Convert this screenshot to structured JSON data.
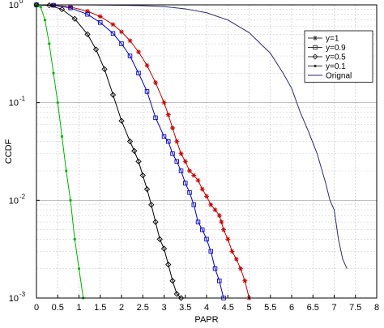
{
  "chart_data": {
    "type": "line",
    "title": "",
    "xlabel": "PAPR",
    "ylabel": "CCDF",
    "xlim": [
      0,
      8
    ],
    "ylim": [
      0.001,
      1
    ],
    "yscale": "log",
    "grid": true,
    "legend_position": "top-right",
    "x_ticks": [
      "0",
      "0.5",
      "1",
      "1.5",
      "2",
      "2.5",
      "3",
      "3.5",
      "4",
      "4.5",
      "5",
      "5.5",
      "6",
      "6.5",
      "7",
      "7.5",
      "8"
    ],
    "y_ticks": [
      {
        "value": 1,
        "base": "10",
        "exp": "0"
      },
      {
        "value": 0.1,
        "base": "10",
        "exp": "-1"
      },
      {
        "value": 0.01,
        "base": "10",
        "exp": "-2"
      },
      {
        "value": 0.001,
        "base": "10",
        "exp": "-3"
      }
    ],
    "series": [
      {
        "name": "y=1",
        "color": "#c00000",
        "marker": "star",
        "points": [
          [
            0,
            1
          ],
          [
            0.4,
            0.99
          ],
          [
            0.8,
            0.95
          ],
          [
            1.2,
            0.86
          ],
          [
            1.5,
            0.76
          ],
          [
            1.8,
            0.63
          ],
          [
            2.0,
            0.53
          ],
          [
            2.2,
            0.43
          ],
          [
            2.4,
            0.33
          ],
          [
            2.6,
            0.24
          ],
          [
            2.8,
            0.16
          ],
          [
            3.0,
            0.1
          ],
          [
            3.1,
            0.075
          ],
          [
            3.2,
            0.055
          ],
          [
            3.3,
            0.04
          ],
          [
            3.4,
            0.03
          ],
          [
            3.5,
            0.025
          ],
          [
            3.6,
            0.02
          ],
          [
            3.7,
            0.018
          ],
          [
            3.8,
            0.016
          ],
          [
            3.9,
            0.013
          ],
          [
            4.0,
            0.011
          ],
          [
            4.1,
            0.009
          ],
          [
            4.2,
            0.008
          ],
          [
            4.3,
            0.007
          ],
          [
            4.35,
            0.006
          ],
          [
            4.4,
            0.005
          ],
          [
            4.5,
            0.004
          ],
          [
            4.6,
            0.003
          ],
          [
            4.7,
            0.0025
          ],
          [
            4.8,
            0.002
          ],
          [
            4.9,
            0.0015
          ],
          [
            5.0,
            0.001
          ]
        ]
      },
      {
        "name": "y=0.9",
        "color": "#0000c0",
        "marker": "square",
        "points": [
          [
            0,
            1
          ],
          [
            0.4,
            0.99
          ],
          [
            0.8,
            0.93
          ],
          [
            1.2,
            0.8
          ],
          [
            1.5,
            0.66
          ],
          [
            1.8,
            0.51
          ],
          [
            2.0,
            0.4
          ],
          [
            2.2,
            0.3
          ],
          [
            2.4,
            0.2
          ],
          [
            2.6,
            0.13
          ],
          [
            2.8,
            0.07
          ],
          [
            3.0,
            0.045
          ],
          [
            3.1,
            0.04
          ],
          [
            3.2,
            0.03
          ],
          [
            3.3,
            0.025
          ],
          [
            3.4,
            0.02
          ],
          [
            3.5,
            0.015
          ],
          [
            3.6,
            0.012
          ],
          [
            3.7,
            0.009
          ],
          [
            3.8,
            0.006
          ],
          [
            3.9,
            0.005
          ],
          [
            4.0,
            0.004
          ],
          [
            4.1,
            0.003
          ],
          [
            4.2,
            0.002
          ],
          [
            4.3,
            0.0015
          ],
          [
            4.4,
            0.001
          ]
        ]
      },
      {
        "name": "y=0.5",
        "color": "#000000",
        "marker": "diamond",
        "points": [
          [
            0,
            1
          ],
          [
            0.3,
            0.99
          ],
          [
            0.6,
            0.9
          ],
          [
            0.9,
            0.72
          ],
          [
            1.2,
            0.5
          ],
          [
            1.4,
            0.35
          ],
          [
            1.6,
            0.22
          ],
          [
            1.8,
            0.12
          ],
          [
            2.0,
            0.065
          ],
          [
            2.2,
            0.04
          ],
          [
            2.3,
            0.032
          ],
          [
            2.4,
            0.025
          ],
          [
            2.5,
            0.018
          ],
          [
            2.6,
            0.013
          ],
          [
            2.7,
            0.009
          ],
          [
            2.8,
            0.006
          ],
          [
            2.9,
            0.004
          ],
          [
            3.0,
            0.0032
          ],
          [
            3.1,
            0.0022
          ],
          [
            3.2,
            0.0015
          ],
          [
            3.3,
            0.0011
          ],
          [
            3.4,
            0.001
          ]
        ]
      },
      {
        "name": "y=0.1",
        "color": "#00b000",
        "marker": "dot",
        "points": [
          [
            0,
            1
          ],
          [
            0.1,
            0.95
          ],
          [
            0.2,
            0.7
          ],
          [
            0.3,
            0.4
          ],
          [
            0.4,
            0.2
          ],
          [
            0.5,
            0.1
          ],
          [
            0.6,
            0.045
          ],
          [
            0.7,
            0.02
          ],
          [
            0.8,
            0.01
          ],
          [
            0.9,
            0.004
          ],
          [
            1.0,
            0.002
          ],
          [
            1.1,
            0.001
          ]
        ]
      },
      {
        "name": "Orignal",
        "color": "#2b2b6b",
        "marker": "none",
        "points": [
          [
            0,
            1
          ],
          [
            1,
            1
          ],
          [
            2,
            0.99
          ],
          [
            2.5,
            0.98
          ],
          [
            3,
            0.96
          ],
          [
            3.5,
            0.91
          ],
          [
            4,
            0.83
          ],
          [
            4.5,
            0.7
          ],
          [
            5,
            0.52
          ],
          [
            5.5,
            0.32
          ],
          [
            5.8,
            0.2
          ],
          [
            6,
            0.14
          ],
          [
            6.2,
            0.08
          ],
          [
            6.4,
            0.05
          ],
          [
            6.6,
            0.03
          ],
          [
            6.8,
            0.015
          ],
          [
            6.9,
            0.01
          ],
          [
            7,
            0.008
          ],
          [
            7.1,
            0.004
          ],
          [
            7.2,
            0.0025
          ],
          [
            7.3,
            0.002
          ]
        ]
      }
    ]
  }
}
